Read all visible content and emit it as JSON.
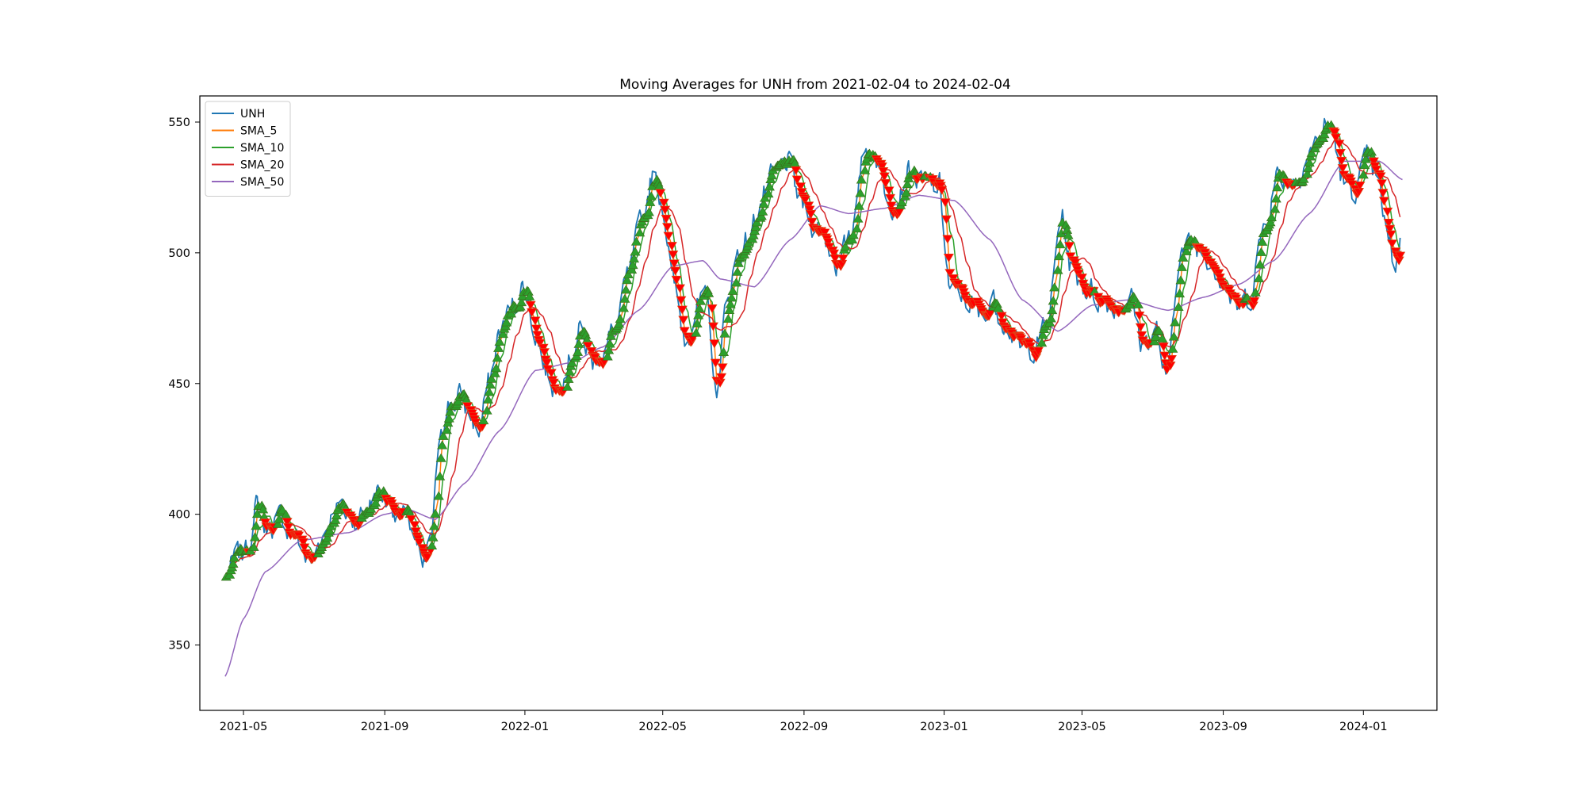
{
  "chart_data": {
    "type": "line",
    "title": "Moving Averages for UNH from 2021-02-04 to 2024-02-04",
    "xlabel": "",
    "ylabel": "",
    "x_range": [
      "2021-03-24",
      "2024-03-05"
    ],
    "ylim": [
      325,
      560
    ],
    "grid": false,
    "legend_position": "top-left",
    "x_ticks": [
      "2021-05",
      "2021-09",
      "2022-01",
      "2022-05",
      "2022-09",
      "2023-01",
      "2023-05",
      "2023-09",
      "2024-01"
    ],
    "y_ticks": [
      350,
      400,
      450,
      500,
      550
    ],
    "colors": {
      "UNH": "#1f77b4",
      "SMA_5": "#ff7f0e",
      "SMA_10": "#2ca02c",
      "SMA_20": "#d62728",
      "SMA_50": "#9467bd",
      "buy_marker": "#2ca02c",
      "sell_marker": "#ff0000"
    },
    "series": [
      {
        "name": "UNH"
      },
      {
        "name": "SMA_5"
      },
      {
        "name": "SMA_10"
      },
      {
        "name": "SMA_20"
      },
      {
        "name": "SMA_50"
      }
    ],
    "price_anchors": [
      [
        "2021-04-15",
        376
      ],
      [
        "2021-04-25",
        383
      ],
      [
        "2021-05-05",
        388
      ],
      [
        "2021-05-12",
        403
      ],
      [
        "2021-05-20",
        395
      ],
      [
        "2021-06-01",
        398
      ],
      [
        "2021-06-15",
        392
      ],
      [
        "2021-06-28",
        381
      ],
      [
        "2021-07-10",
        393
      ],
      [
        "2021-07-20",
        404
      ],
      [
        "2021-08-01",
        398
      ],
      [
        "2021-08-15",
        401
      ],
      [
        "2021-08-25",
        409
      ],
      [
        "2021-09-05",
        405
      ],
      [
        "2021-09-15",
        400
      ],
      [
        "2021-09-25",
        395
      ],
      [
        "2021-10-04",
        377
      ],
      [
        "2021-10-12",
        392
      ],
      [
        "2021-10-20",
        435
      ],
      [
        "2021-10-28",
        443
      ],
      [
        "2021-11-05",
        444
      ],
      [
        "2021-11-12",
        440
      ],
      [
        "2021-11-22",
        432
      ],
      [
        "2021-12-01",
        450
      ],
      [
        "2021-12-10",
        470
      ],
      [
        "2021-12-22",
        480
      ],
      [
        "2021-12-31",
        488
      ],
      [
        "2022-01-10",
        470
      ],
      [
        "2022-01-20",
        455
      ],
      [
        "2022-01-28",
        448
      ],
      [
        "2022-02-08",
        460
      ],
      [
        "2022-02-18",
        470
      ],
      [
        "2022-02-28",
        458
      ],
      [
        "2022-03-08",
        462
      ],
      [
        "2022-03-20",
        470
      ],
      [
        "2022-04-01",
        490
      ],
      [
        "2022-04-12",
        510
      ],
      [
        "2022-04-22",
        530
      ],
      [
        "2022-05-01",
        520
      ],
      [
        "2022-05-10",
        488
      ],
      [
        "2022-05-20",
        468
      ],
      [
        "2022-06-01",
        480
      ],
      [
        "2022-06-10",
        480
      ],
      [
        "2022-06-16",
        445
      ],
      [
        "2022-06-25",
        478
      ],
      [
        "2022-07-05",
        500
      ],
      [
        "2022-07-15",
        505
      ],
      [
        "2022-07-25",
        520
      ],
      [
        "2022-08-05",
        528
      ],
      [
        "2022-08-18",
        535
      ],
      [
        "2022-08-28",
        520
      ],
      [
        "2022-09-08",
        512
      ],
      [
        "2022-09-20",
        505
      ],
      [
        "2022-10-01",
        496
      ],
      [
        "2022-10-12",
        505
      ],
      [
        "2022-10-20",
        535
      ],
      [
        "2022-11-01",
        540
      ],
      [
        "2022-11-10",
        525
      ],
      [
        "2022-11-20",
        520
      ],
      [
        "2022-12-01",
        532
      ],
      [
        "2022-12-15",
        525
      ],
      [
        "2022-12-28",
        525
      ],
      [
        "2023-01-06",
        485
      ],
      [
        "2023-01-20",
        483
      ],
      [
        "2023-02-01",
        475
      ],
      [
        "2023-02-12",
        482
      ],
      [
        "2023-02-24",
        475
      ],
      [
        "2023-03-08",
        462
      ],
      [
        "2023-03-20",
        465
      ],
      [
        "2023-04-01",
        472
      ],
      [
        "2023-04-13",
        515
      ],
      [
        "2023-04-22",
        493
      ],
      [
        "2023-05-05",
        487
      ],
      [
        "2023-05-20",
        482
      ],
      [
        "2023-06-01",
        480
      ],
      [
        "2023-06-12",
        484
      ],
      [
        "2023-06-22",
        465
      ],
      [
        "2023-07-05",
        470
      ],
      [
        "2023-07-14",
        448
      ],
      [
        "2023-07-24",
        500
      ],
      [
        "2023-08-05",
        503
      ],
      [
        "2023-08-20",
        500
      ],
      [
        "2023-09-01",
        490
      ],
      [
        "2023-09-12",
        478
      ],
      [
        "2023-09-25",
        484
      ],
      [
        "2023-10-06",
        510
      ],
      [
        "2023-10-18",
        530
      ],
      [
        "2023-11-01",
        528
      ],
      [
        "2023-11-15",
        538
      ],
      [
        "2023-11-28",
        548
      ],
      [
        "2023-12-06",
        545
      ],
      [
        "2023-12-15",
        525
      ],
      [
        "2023-12-25",
        525
      ],
      [
        "2024-01-05",
        535
      ],
      [
        "2024-01-14",
        525
      ],
      [
        "2024-01-22",
        505
      ],
      [
        "2024-01-28",
        495
      ],
      [
        "2024-02-04",
        508
      ]
    ],
    "sma50_anchors": [
      [
        "2021-04-15",
        338
      ],
      [
        "2021-05-01",
        360
      ],
      [
        "2021-05-20",
        378
      ],
      [
        "2021-06-20",
        390
      ],
      [
        "2021-08-01",
        393
      ],
      [
        "2021-09-01",
        400
      ],
      [
        "2021-09-20",
        402
      ],
      [
        "2021-10-15",
        398
      ],
      [
        "2021-11-10",
        412
      ],
      [
        "2021-12-10",
        432
      ],
      [
        "2022-01-10",
        455
      ],
      [
        "2022-02-10",
        458
      ],
      [
        "2022-03-10",
        464
      ],
      [
        "2022-04-10",
        478
      ],
      [
        "2022-05-10",
        495
      ],
      [
        "2022-06-05",
        497
      ],
      [
        "2022-06-20",
        490
      ],
      [
        "2022-07-20",
        487
      ],
      [
        "2022-08-20",
        505
      ],
      [
        "2022-09-15",
        518
      ],
      [
        "2022-10-10",
        515
      ],
      [
        "2022-11-10",
        517
      ],
      [
        "2022-12-10",
        522
      ],
      [
        "2023-01-10",
        520
      ],
      [
        "2023-02-10",
        505
      ],
      [
        "2023-03-10",
        482
      ],
      [
        "2023-04-10",
        470
      ],
      [
        "2023-05-10",
        480
      ],
      [
        "2023-06-10",
        482
      ],
      [
        "2023-07-15",
        478
      ],
      [
        "2023-08-15",
        483
      ],
      [
        "2023-09-15",
        488
      ],
      [
        "2023-10-15",
        497
      ],
      [
        "2023-11-15",
        515
      ],
      [
        "2023-12-15",
        535
      ],
      [
        "2024-01-15",
        535
      ],
      [
        "2024-02-04",
        528
      ]
    ]
  }
}
